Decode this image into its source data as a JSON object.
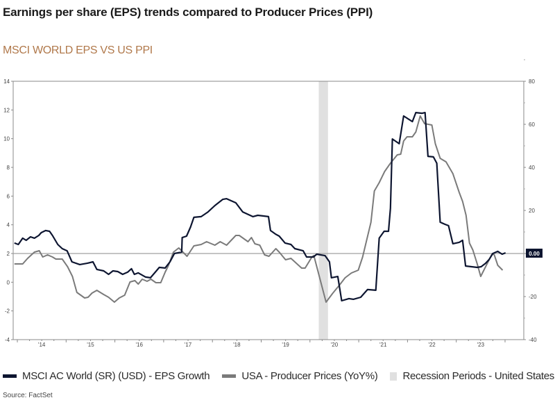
{
  "title": "Earnings per share (EPS) trends compared to Producer Prices (PPI)",
  "subtitle": "MSCI WORLD EPS VS US PPI",
  "source": "Source: FactSet",
  "colors": {
    "eps": "#0d1530",
    "ppi": "#7a7a7a",
    "recession": "#e0e0e0",
    "subtitle": "#b0784a",
    "refline": "#a0a0a0"
  },
  "chart_data": {
    "type": "line",
    "title": "MSCI WORLD EPS VS US PPI",
    "x_tick_labels": [
      "'14",
      "'15",
      "'16",
      "'17",
      "'18",
      "'19",
      "'20",
      "'21",
      "'22",
      "'23"
    ],
    "x_tick_years": [
      2014,
      2015,
      2016,
      2017,
      2018,
      2019,
      2020,
      2021,
      2022,
      2023
    ],
    "xlim": [
      2014.0,
      2024.05
    ],
    "y_left": {
      "ylim": [
        -4,
        14
      ],
      "ticks": [
        "14",
        "12",
        "10",
        "8",
        "6",
        "4",
        "2",
        "0",
        "-2",
        "-4"
      ],
      "tick_values": [
        14,
        12,
        10,
        8,
        6,
        4,
        2,
        0,
        -2,
        -4
      ]
    },
    "y_right": {
      "ylim": [
        -40,
        80
      ],
      "ticks": [
        "80",
        "60",
        "40",
        "20",
        "0",
        "-20",
        "-40"
      ],
      "tick_values": [
        80,
        60,
        40,
        20,
        0,
        -20,
        -40
      ]
    },
    "reference_line": {
      "axis": "right",
      "value": 0,
      "label": "0.00"
    },
    "recession_periods": [
      [
        2020.18,
        2020.37
      ]
    ],
    "legend_position": "bottom",
    "series": [
      {
        "name": "MSCI AC World (SR) (USD) - EPS Growth",
        "axis": "left",
        "points": [
          [
            2013.94,
            2.73
          ],
          [
            2014.02,
            2.63
          ],
          [
            2014.11,
            3.07
          ],
          [
            2014.18,
            2.92
          ],
          [
            2014.27,
            3.16
          ],
          [
            2014.35,
            3.07
          ],
          [
            2014.44,
            3.26
          ],
          [
            2014.49,
            3.45
          ],
          [
            2014.58,
            3.6
          ],
          [
            2014.66,
            3.55
          ],
          [
            2014.72,
            3.26
          ],
          [
            2014.83,
            2.63
          ],
          [
            2014.92,
            2.34
          ],
          [
            2015.02,
            2.19
          ],
          [
            2015.12,
            1.42
          ],
          [
            2015.28,
            1.23
          ],
          [
            2015.43,
            1.32
          ],
          [
            2015.55,
            1.42
          ],
          [
            2015.63,
            0.89
          ],
          [
            2015.77,
            0.79
          ],
          [
            2015.87,
            0.55
          ],
          [
            2015.96,
            0.79
          ],
          [
            2016.06,
            0.74
          ],
          [
            2016.16,
            0.55
          ],
          [
            2016.26,
            0.7
          ],
          [
            2016.34,
            0.94
          ],
          [
            2016.4,
            0.55
          ],
          [
            2016.48,
            0.65
          ],
          [
            2016.63,
            0.36
          ],
          [
            2016.73,
            0.31
          ],
          [
            2016.85,
            0.79
          ],
          [
            2016.91,
            1.03
          ],
          [
            2017.03,
            0.99
          ],
          [
            2017.13,
            1.42
          ],
          [
            2017.22,
            2.0
          ],
          [
            2017.37,
            2.1
          ],
          [
            2017.38,
            3.11
          ],
          [
            2017.47,
            3.21
          ],
          [
            2017.55,
            3.84
          ],
          [
            2017.62,
            4.52
          ],
          [
            2017.77,
            4.57
          ],
          [
            2017.91,
            4.9
          ],
          [
            2018.05,
            5.34
          ],
          [
            2018.21,
            5.77
          ],
          [
            2018.29,
            5.82
          ],
          [
            2018.48,
            5.53
          ],
          [
            2018.62,
            4.9
          ],
          [
            2018.83,
            4.57
          ],
          [
            2018.93,
            4.66
          ],
          [
            2019.15,
            4.57
          ],
          [
            2019.19,
            3.6
          ],
          [
            2019.29,
            3.36
          ],
          [
            2019.37,
            3.21
          ],
          [
            2019.49,
            2.73
          ],
          [
            2019.61,
            2.63
          ],
          [
            2019.69,
            2.34
          ],
          [
            2019.86,
            2.19
          ],
          [
            2019.93,
            1.76
          ],
          [
            2020.07,
            1.76
          ],
          [
            2020.14,
            1.95
          ],
          [
            2020.31,
            1.85
          ],
          [
            2020.4,
            1.42
          ],
          [
            2020.44,
            0.31
          ],
          [
            2020.57,
            0.4
          ],
          [
            2020.65,
            -1.29
          ],
          [
            2020.8,
            -1.14
          ],
          [
            2020.89,
            -1.19
          ],
          [
            2021.04,
            -1.05
          ],
          [
            2021.18,
            -0.51
          ],
          [
            2021.35,
            -0.56
          ],
          [
            2021.42,
            3.07
          ],
          [
            2021.52,
            3.55
          ],
          [
            2021.61,
            3.55
          ],
          [
            2021.65,
            5.15
          ],
          [
            2021.69,
            9.98
          ],
          [
            2021.83,
            9.65
          ],
          [
            2021.92,
            11.58
          ],
          [
            2022.1,
            11.19
          ],
          [
            2022.17,
            11.82
          ],
          [
            2022.3,
            11.77
          ],
          [
            2022.36,
            11.82
          ],
          [
            2022.42,
            8.77
          ],
          [
            2022.53,
            8.73
          ],
          [
            2022.6,
            8.29
          ],
          [
            2022.67,
            4.18
          ],
          [
            2022.77,
            4.03
          ],
          [
            2022.84,
            3.94
          ],
          [
            2022.93,
            2.68
          ],
          [
            2023.06,
            2.78
          ],
          [
            2023.13,
            2.92
          ],
          [
            2023.19,
            1.13
          ],
          [
            2023.31,
            1.08
          ],
          [
            2023.43,
            1.03
          ],
          [
            2023.51,
            1.08
          ],
          [
            2023.6,
            1.32
          ],
          [
            2023.67,
            1.57
          ],
          [
            2023.75,
            2.0
          ],
          [
            2023.85,
            2.15
          ],
          [
            2023.94,
            1.95
          ],
          [
            2024.01,
            2.05
          ]
        ]
      },
      {
        "name": "USA - Producer Prices (YoY%)",
        "axis": "right",
        "points": [
          [
            2013.94,
            -4.84
          ],
          [
            2014.11,
            -4.84
          ],
          [
            2014.21,
            -2.26
          ],
          [
            2014.35,
            0.65
          ],
          [
            2014.45,
            1.29
          ],
          [
            2014.52,
            -1.61
          ],
          [
            2014.62,
            -0.65
          ],
          [
            2014.72,
            -1.61
          ],
          [
            2014.79,
            -2.58
          ],
          [
            2014.92,
            -2.58
          ],
          [
            2015.03,
            -6.13
          ],
          [
            2015.13,
            -10.65
          ],
          [
            2015.22,
            -18.06
          ],
          [
            2015.38,
            -20.65
          ],
          [
            2015.45,
            -20.32
          ],
          [
            2015.53,
            -18.39
          ],
          [
            2015.63,
            -17.1
          ],
          [
            2015.77,
            -19.03
          ],
          [
            2015.87,
            -20.32
          ],
          [
            2015.99,
            -22.58
          ],
          [
            2016.09,
            -20.65
          ],
          [
            2016.2,
            -19.35
          ],
          [
            2016.31,
            -13.23
          ],
          [
            2016.41,
            -12.58
          ],
          [
            2016.48,
            -14.19
          ],
          [
            2016.56,
            -11.94
          ],
          [
            2016.66,
            -12.9
          ],
          [
            2016.74,
            -11.94
          ],
          [
            2016.84,
            -13.55
          ],
          [
            2016.94,
            -13.55
          ],
          [
            2017.03,
            -8.71
          ],
          [
            2017.1,
            -5.48
          ],
          [
            2017.2,
            0.65
          ],
          [
            2017.31,
            2.58
          ],
          [
            2017.48,
            -1.29
          ],
          [
            2017.62,
            3.55
          ],
          [
            2017.77,
            4.19
          ],
          [
            2017.88,
            5.48
          ],
          [
            2018.05,
            3.87
          ],
          [
            2018.16,
            5.48
          ],
          [
            2018.29,
            3.87
          ],
          [
            2018.48,
            8.39
          ],
          [
            2018.55,
            8.39
          ],
          [
            2018.73,
            5.48
          ],
          [
            2018.8,
            7.42
          ],
          [
            2018.87,
            4.52
          ],
          [
            2018.97,
            3.87
          ],
          [
            2019.07,
            -0.65
          ],
          [
            2019.16,
            -1.29
          ],
          [
            2019.3,
            2.26
          ],
          [
            2019.37,
            0.65
          ],
          [
            2019.5,
            -2.9
          ],
          [
            2019.61,
            -2.26
          ],
          [
            2019.83,
            -6.77
          ],
          [
            2019.9,
            -6.77
          ],
          [
            2020.04,
            -1.61
          ],
          [
            2020.08,
            -0.97
          ],
          [
            2020.33,
            -22.58
          ],
          [
            2020.47,
            -18.39
          ],
          [
            2020.61,
            -14.52
          ],
          [
            2020.72,
            -11.29
          ],
          [
            2020.85,
            -9.03
          ],
          [
            2020.99,
            -7.74
          ],
          [
            2021.08,
            -1.61
          ],
          [
            2021.25,
            14.52
          ],
          [
            2021.32,
            29.03
          ],
          [
            2021.42,
            32.9
          ],
          [
            2021.53,
            38.06
          ],
          [
            2021.65,
            41.94
          ],
          [
            2021.79,
            45.81
          ],
          [
            2021.86,
            46.13
          ],
          [
            2021.92,
            52.26
          ],
          [
            2021.99,
            54.19
          ],
          [
            2022.1,
            54.19
          ],
          [
            2022.17,
            56.45
          ],
          [
            2022.26,
            63.87
          ],
          [
            2022.35,
            60.32
          ],
          [
            2022.5,
            59.68
          ],
          [
            2022.57,
            50.97
          ],
          [
            2022.67,
            44.19
          ],
          [
            2022.79,
            42.58
          ],
          [
            2022.93,
            37.1
          ],
          [
            2023.06,
            28.39
          ],
          [
            2023.13,
            24.19
          ],
          [
            2023.2,
            17.74
          ],
          [
            2023.27,
            4.84
          ],
          [
            2023.34,
            1.61
          ],
          [
            2023.43,
            -4.84
          ],
          [
            2023.5,
            -10.65
          ],
          [
            2023.63,
            -4.84
          ],
          [
            2023.74,
            0.0
          ],
          [
            2023.78,
            -0.65
          ],
          [
            2023.85,
            -5.48
          ],
          [
            2023.95,
            -7.74
          ]
        ]
      }
    ],
    "legend": [
      "MSCI AC World (SR) (USD) - EPS Growth",
      "USA - Producer Prices (YoY%)",
      "Recession Periods - United States"
    ]
  }
}
